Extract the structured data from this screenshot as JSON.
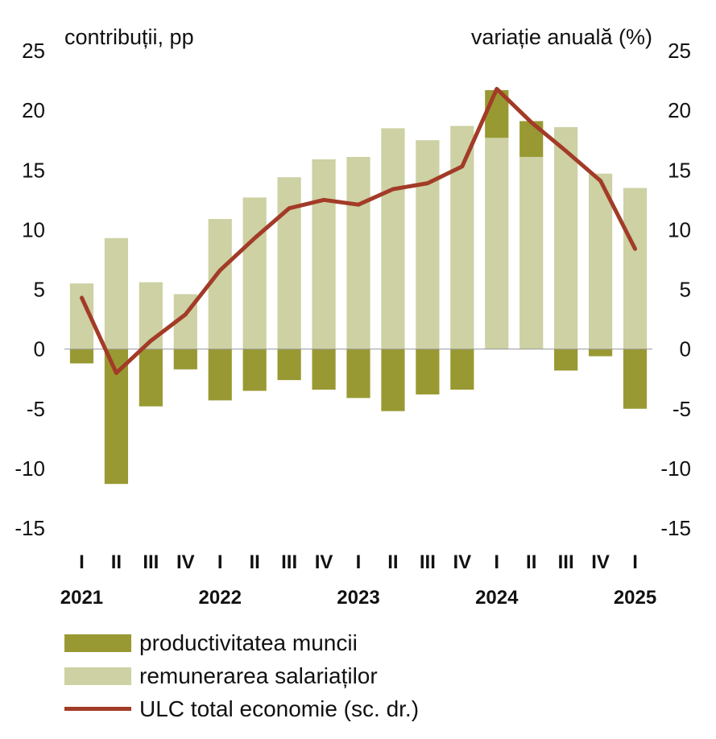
{
  "chart_data": {
    "type": "bar",
    "left_axis_title": "contribuții, pp",
    "right_axis_title": "variație anuală (%)",
    "ylim": [
      -15,
      25
    ],
    "yticks": [
      "25",
      "20",
      "15",
      "10",
      "5",
      "0",
      "-5",
      "-10",
      "-15"
    ],
    "categories": [
      "I",
      "II",
      "III",
      "IV",
      "I",
      "II",
      "III",
      "IV",
      "I",
      "II",
      "III",
      "IV",
      "I",
      "II",
      "III",
      "IV",
      "I"
    ],
    "years": [
      {
        "label": "2021",
        "index": 0
      },
      {
        "label": "2022",
        "index": 4
      },
      {
        "label": "2023",
        "index": 8
      },
      {
        "label": "2024",
        "index": 12
      },
      {
        "label": "2025",
        "index": 16
      }
    ],
    "series": [
      {
        "name": "productivitatea muncii",
        "type": "bar",
        "color": "#999933",
        "values": [
          -1.2,
          -11.3,
          -4.8,
          -1.7,
          -4.3,
          -3.5,
          -2.6,
          -3.4,
          -4.1,
          -5.2,
          -3.8,
          -3.4,
          4.0,
          3.0,
          -1.8,
          -0.6,
          -5.0
        ]
      },
      {
        "name": "remunerarea salariaților",
        "type": "bar",
        "color": "#cdd1a3",
        "values": [
          5.5,
          9.3,
          5.6,
          4.6,
          10.9,
          12.7,
          14.4,
          15.9,
          16.1,
          18.5,
          17.5,
          18.7,
          17.7,
          16.1,
          18.6,
          14.7,
          13.5
        ]
      },
      {
        "name": "ULC total economie (sc. dr.)",
        "type": "line",
        "color": "#a23b27",
        "values": [
          4.3,
          -2.0,
          0.7,
          2.9,
          6.6,
          9.3,
          11.8,
          12.5,
          12.1,
          13.4,
          13.9,
          15.3,
          21.8,
          19.0,
          16.6,
          14.1,
          8.4
        ]
      }
    ],
    "legend_position": "bottom-left"
  }
}
